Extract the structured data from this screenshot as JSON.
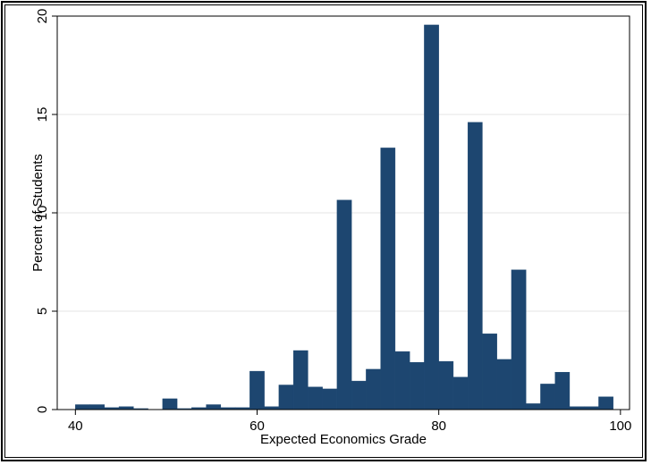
{
  "chart_data": {
    "type": "bar",
    "xlabel": "Expected Economics Grade",
    "ylabel": "Percent of Students",
    "xlim": [
      38,
      101
    ],
    "ylim": [
      0,
      20
    ],
    "xticks": [
      40,
      60,
      80,
      100
    ],
    "yticks": [
      0,
      5,
      10,
      15,
      20
    ],
    "grid": true,
    "bar_color": "#1d4670",
    "bins": [
      {
        "start": 40.0,
        "end": 41.6,
        "value": 0.25
      },
      {
        "start": 41.6,
        "end": 43.2,
        "value": 0.25
      },
      {
        "start": 43.2,
        "end": 44.8,
        "value": 0.1
      },
      {
        "start": 44.8,
        "end": 46.4,
        "value": 0.15
      },
      {
        "start": 46.4,
        "end": 48.0,
        "value": 0.05
      },
      {
        "start": 48.0,
        "end": 49.6,
        "value": 0.0
      },
      {
        "start": 49.6,
        "end": 51.2,
        "value": 0.55
      },
      {
        "start": 51.2,
        "end": 52.8,
        "value": 0.05
      },
      {
        "start": 52.8,
        "end": 54.4,
        "value": 0.1
      },
      {
        "start": 54.4,
        "end": 56.0,
        "value": 0.25
      },
      {
        "start": 56.0,
        "end": 57.6,
        "value": 0.1
      },
      {
        "start": 57.6,
        "end": 59.2,
        "value": 0.1
      },
      {
        "start": 59.2,
        "end": 60.8,
        "value": 1.95
      },
      {
        "start": 60.8,
        "end": 62.4,
        "value": 0.15
      },
      {
        "start": 62.4,
        "end": 64.0,
        "value": 1.25
      },
      {
        "start": 64.0,
        "end": 65.6,
        "value": 3.0
      },
      {
        "start": 65.6,
        "end": 67.2,
        "value": 1.15
      },
      {
        "start": 67.2,
        "end": 68.8,
        "value": 1.05
      },
      {
        "start": 68.8,
        "end": 70.4,
        "value": 10.65
      },
      {
        "start": 70.4,
        "end": 72.0,
        "value": 1.45
      },
      {
        "start": 72.0,
        "end": 73.6,
        "value": 2.05
      },
      {
        "start": 73.6,
        "end": 75.2,
        "value": 13.3
      },
      {
        "start": 75.2,
        "end": 76.8,
        "value": 2.95
      },
      {
        "start": 76.8,
        "end": 78.4,
        "value": 2.4
      },
      {
        "start": 78.4,
        "end": 80.0,
        "value": 19.55
      },
      {
        "start": 80.0,
        "end": 81.6,
        "value": 2.45
      },
      {
        "start": 81.6,
        "end": 83.2,
        "value": 1.65
      },
      {
        "start": 83.2,
        "end": 84.8,
        "value": 14.6
      },
      {
        "start": 84.8,
        "end": 86.4,
        "value": 3.85
      },
      {
        "start": 86.4,
        "end": 88.0,
        "value": 2.55
      },
      {
        "start": 88.0,
        "end": 89.6,
        "value": 7.1
      },
      {
        "start": 89.6,
        "end": 91.2,
        "value": 0.3
      },
      {
        "start": 91.2,
        "end": 92.8,
        "value": 1.3
      },
      {
        "start": 92.8,
        "end": 94.4,
        "value": 1.9
      },
      {
        "start": 94.4,
        "end": 96.0,
        "value": 0.15
      },
      {
        "start": 96.0,
        "end": 97.6,
        "value": 0.15
      },
      {
        "start": 97.6,
        "end": 99.2,
        "value": 0.65
      }
    ]
  }
}
